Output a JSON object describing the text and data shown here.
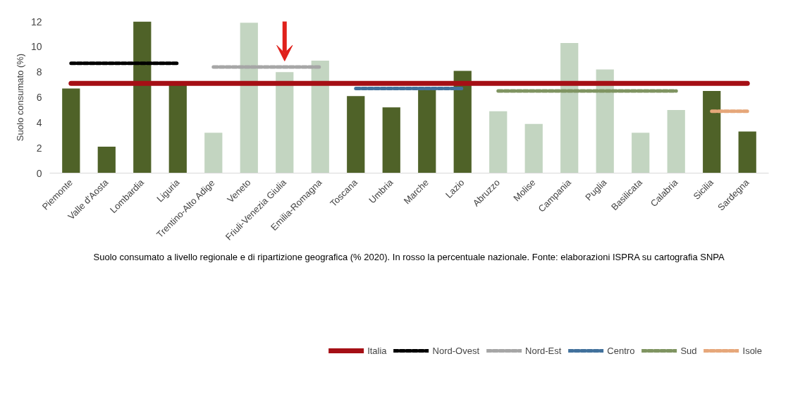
{
  "chart_data": {
    "type": "bar",
    "ylabel": "Suolo consumato (%)",
    "categories": [
      "Piemonte",
      "Valle d'Aosta",
      "Lombardia",
      "Liguria",
      "Trentino-Alto Adige",
      "Veneto",
      "Friuli-Venezia Giulia",
      "Emilia-Romagna",
      "Toscana",
      "Umbria",
      "Marche",
      "Lazio",
      "Abruzzo",
      "Molise",
      "Campania",
      "Puglia",
      "Basilicata",
      "Calabria",
      "Sicilia",
      "Sardegna"
    ],
    "series": [
      {
        "values": [
          6.7,
          2.1,
          12.0,
          7.0,
          3.2,
          11.9,
          8.0,
          8.9,
          6.1,
          5.2,
          6.7,
          8.1,
          4.9,
          3.9,
          10.3,
          8.2,
          3.2,
          5.0,
          6.5,
          3.3
        ],
        "colors": [
          "#4f6228",
          "#4f6228",
          "#4f6228",
          "#4f6228",
          "#c3d5c1",
          "#c3d5c1",
          "#c3d5c1",
          "#c3d5c1",
          "#4f6228",
          "#4f6228",
          "#4f6228",
          "#4f6228",
          "#c3d5c1",
          "#c3d5c1",
          "#c3d5c1",
          "#c3d5c1",
          "#c3d5c1",
          "#c3d5c1",
          "#4f6228",
          "#4f6228"
        ]
      },
      {
        "type": "line",
        "name": "Italia",
        "color": "#a50f15",
        "line_style": "solid",
        "values": [
          7.1,
          7.1,
          7.1,
          7.1,
          7.1,
          7.1,
          7.1,
          7.1,
          7.1,
          7.1,
          7.1,
          7.1,
          7.1,
          7.1,
          7.1,
          7.1,
          7.1,
          7.1,
          7.1,
          7.1
        ]
      },
      {
        "type": "line",
        "name": "Nord-Ovest",
        "color": "#000000",
        "line_style": "dashed",
        "values": [
          8.7,
          8.7,
          8.7,
          8.7,
          null,
          null,
          null,
          null,
          null,
          null,
          null,
          null,
          null,
          null,
          null,
          null,
          null,
          null,
          null,
          null
        ]
      },
      {
        "type": "line",
        "name": "Nord-Est",
        "color": "#a6a6a6",
        "line_style": "dashed",
        "values": [
          null,
          null,
          null,
          null,
          8.4,
          8.4,
          8.4,
          8.4,
          null,
          null,
          null,
          null,
          null,
          null,
          null,
          null,
          null,
          null,
          null,
          null
        ]
      },
      {
        "type": "line",
        "name": "Centro",
        "color": "#41719c",
        "line_style": "dashed",
        "values": [
          null,
          null,
          null,
          null,
          null,
          null,
          null,
          null,
          6.7,
          6.7,
          6.7,
          6.7,
          null,
          null,
          null,
          null,
          null,
          null,
          null,
          null
        ]
      },
      {
        "type": "line",
        "name": "Sud",
        "color": "#7f9461",
        "line_style": "dashed",
        "values": [
          null,
          null,
          null,
          null,
          null,
          null,
          null,
          null,
          null,
          null,
          null,
          null,
          6.5,
          6.5,
          6.5,
          6.5,
          6.5,
          6.5,
          null,
          null
        ]
      },
      {
        "type": "line",
        "name": "Isole",
        "color": "#e6a77a",
        "line_style": "dashed",
        "values": [
          null,
          null,
          null,
          null,
          null,
          null,
          null,
          null,
          null,
          null,
          null,
          null,
          null,
          null,
          null,
          null,
          null,
          null,
          4.9,
          4.9
        ]
      }
    ],
    "ylim": [
      0,
      12
    ],
    "yticks": [
      0,
      2,
      4,
      6,
      8,
      10,
      12
    ],
    "grid": false,
    "legend": "bottom",
    "annotations": [
      "Suolo consumato a livello regionale e di ripartizione geografica (% 2020). In rosso la percentuale nazionale. Fonte: elaborazioni ISPRA su cartografia SNPA"
    ]
  }
}
